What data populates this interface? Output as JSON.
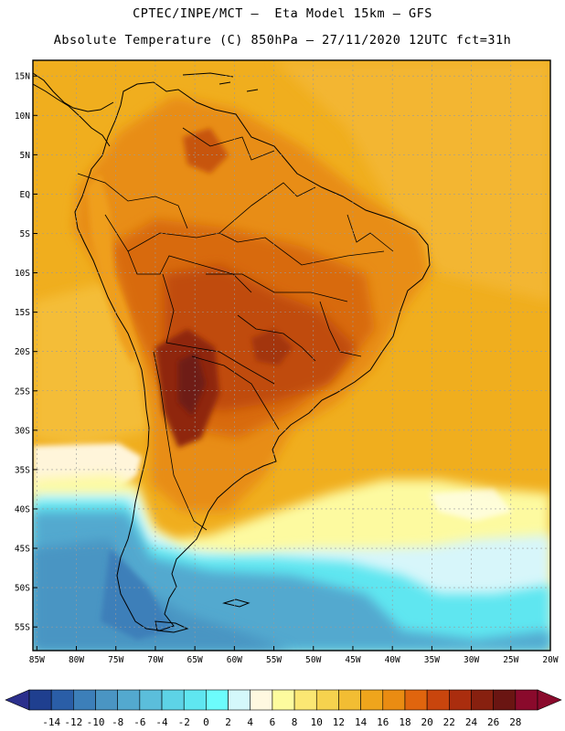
{
  "header": {
    "line1": "CPTEC/INPE/MCT –  Eta Model 15km – GFS",
    "line2": "Absolute Temperature (C) 850hPa – 27/11/2020 12UTC fct=31h"
  },
  "map": {
    "lat_labels": [
      "15N",
      "10N",
      "5N",
      "EQ",
      "5S",
      "10S",
      "15S",
      "20S",
      "25S",
      "30S",
      "35S",
      "40S",
      "45S",
      "50S",
      "55S"
    ],
    "lat_values": [
      15,
      10,
      5,
      0,
      -5,
      -10,
      -15,
      -20,
      -25,
      -30,
      -35,
      -40,
      -45,
      -50,
      -55
    ],
    "lon_labels": [
      "85W",
      "80W",
      "75W",
      "70W",
      "65W",
      "60W",
      "55W",
      "50W",
      "45W",
      "40W",
      "35W",
      "30W",
      "25W",
      "20W"
    ],
    "lon_values": [
      -85,
      -80,
      -75,
      -70,
      -65,
      -60,
      -55,
      -50,
      -45,
      -40,
      -35,
      -30,
      -25,
      -20
    ],
    "extent": {
      "lon_min": -85.5,
      "lon_max": -20,
      "lat_min": -58,
      "lat_max": 17
    }
  },
  "colorbar": {
    "labels": [
      "-14",
      "-12",
      "-10",
      "-8",
      "-6",
      "-4",
      "-2",
      "0",
      "2",
      "4",
      "6",
      "8",
      "10",
      "12",
      "14",
      "16",
      "18",
      "20",
      "22",
      "24",
      "26",
      "28"
    ],
    "colors": [
      "#1f3f8f",
      "#2a5ea7",
      "#3c7fb9",
      "#4a95c3",
      "#53a9cf",
      "#5bbedb",
      "#5dd3e6",
      "#5fe6f0",
      "#6cfcfc",
      "#d4f8fb",
      "#fff8e0",
      "#fdfb9e",
      "#fbe773",
      "#f6d24e",
      "#f2bd33",
      "#efa51c",
      "#ea8c12",
      "#e0650e",
      "#c9450d",
      "#aa2d0e",
      "#87200f",
      "#6a1512",
      "#8a0a2c"
    ],
    "low_arrow_color": "#2b2f8c",
    "high_arrow_color": "#8a0a2c"
  }
}
